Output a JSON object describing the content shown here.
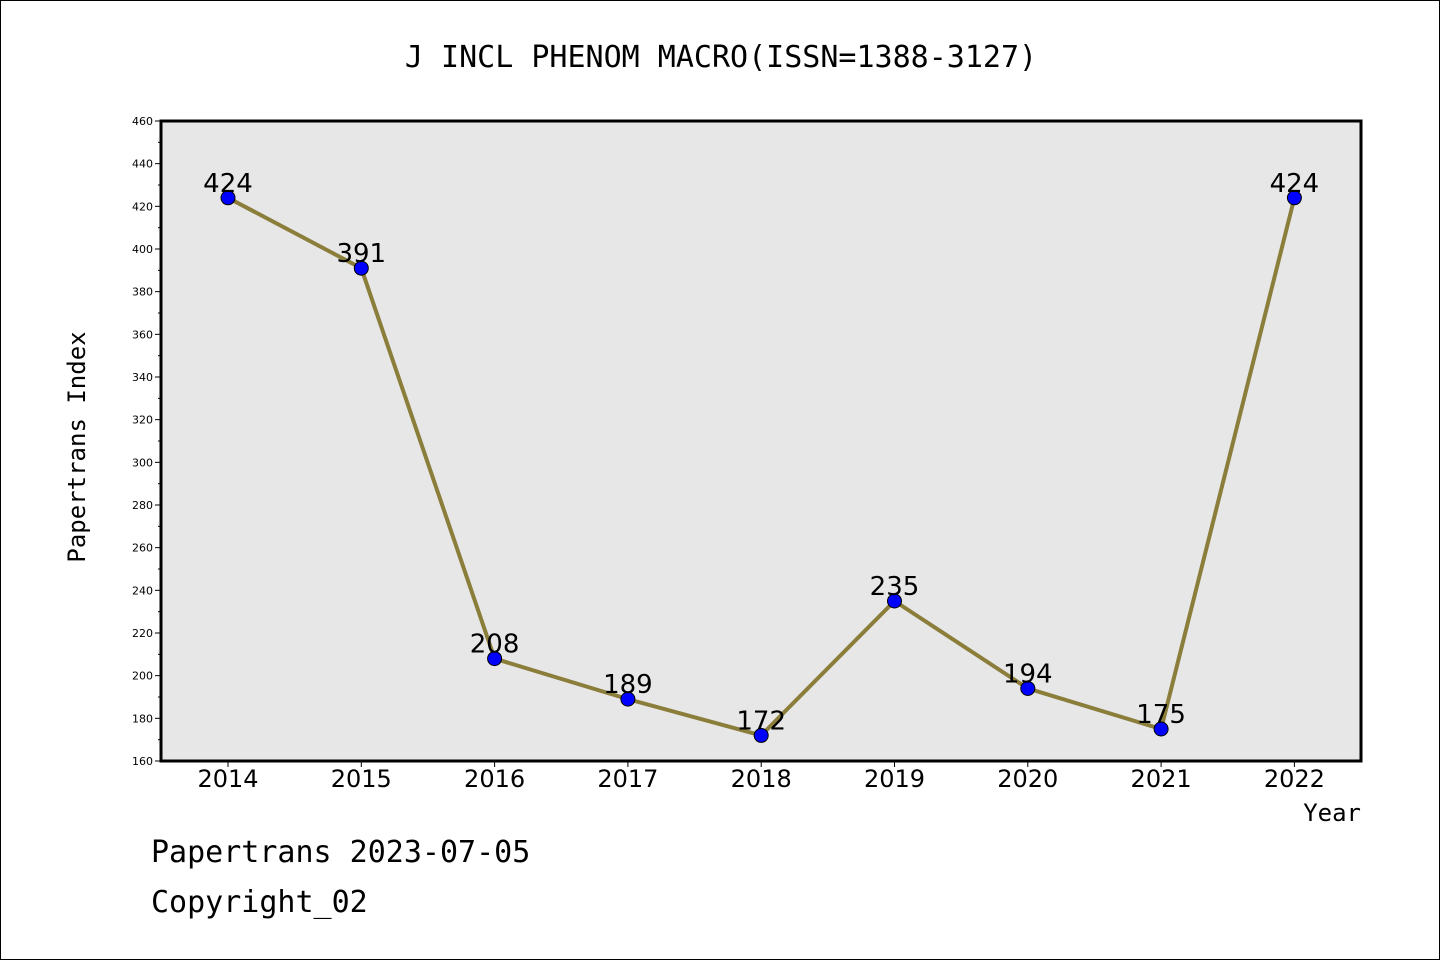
{
  "chart_data": {
    "type": "line",
    "title": "J INCL PHENOM MACRO(ISSN=1388-3127)",
    "xlabel": "Year",
    "ylabel": "Papertrans Index",
    "categories": [
      "2014",
      "2015",
      "2016",
      "2017",
      "2018",
      "2019",
      "2020",
      "2021",
      "2022"
    ],
    "series": [
      {
        "values": [
          424,
          391,
          208,
          189,
          172,
          235,
          194,
          175,
          424
        ]
      }
    ],
    "ylim": [
      160,
      460
    ],
    "yticks": [
      160,
      180,
      200,
      220,
      240,
      260,
      280,
      300,
      320,
      340,
      360,
      380,
      400,
      420,
      440,
      460
    ],
    "grid": false,
    "line_color": "#8b7d3a",
    "marker_color": "#0000ff",
    "plot_background": "#e7e7e7"
  },
  "footer": {
    "line1": "Papertrans 2023-07-05",
    "line2": "Copyright_02"
  }
}
